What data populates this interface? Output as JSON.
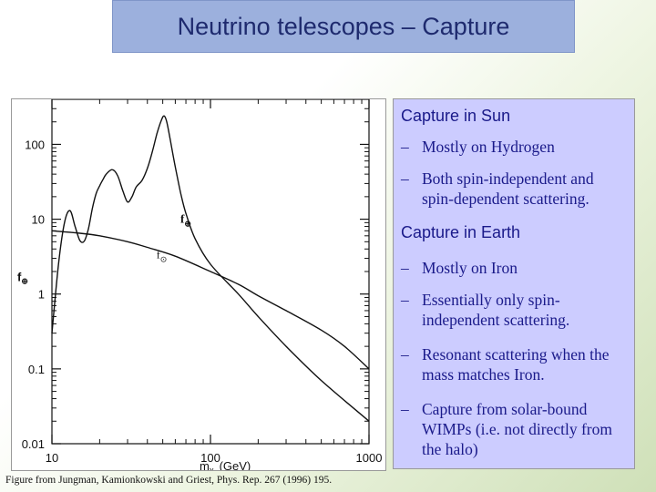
{
  "slide": {
    "title": "Neutrino telescopes – Capture",
    "caption": "Figure from Jungman, Kamionkowski and Griest, Phys. Rep. 267 (1996) 195."
  },
  "sections": [
    {
      "heading": "Capture in Sun",
      "items": [
        "Mostly on Hydrogen",
        "Both spin-independent and spin-dependent scattering."
      ]
    },
    {
      "heading": "Capture in Earth",
      "items": [
        "Mostly on Iron",
        "Essentially only spin-independent scattering.",
        "Resonant scattering when the mass matches Iron.",
        "Capture from solar-bound WIMPs (i.e. not directly from the halo)"
      ]
    }
  ],
  "dash": "–",
  "chart_data": {
    "type": "line",
    "xlabel": "m",
    "xlabel_sub": "χ",
    "xlabel_unit": "(GeV)",
    "ylabel": "f",
    "ylabel_sub": "⊕",
    "x_scale": "log",
    "y_scale": "log",
    "xlim": [
      10,
      1000
    ],
    "ylim": [
      0.01,
      400
    ],
    "x_ticks": [
      10,
      100,
      1000
    ],
    "x_tick_labels": [
      "10",
      "100",
      "1000"
    ],
    "y_ticks": [
      0.01,
      0.1,
      1,
      10,
      100
    ],
    "y_tick_labels": [
      "0.01",
      "0.1",
      "1",
      "10",
      "100"
    ],
    "series": [
      {
        "name": "f⊕",
        "label_main": "f",
        "label_sub": "⊕",
        "points": [
          [
            10,
            0.3
          ],
          [
            11,
            2.5
          ],
          [
            12,
            9
          ],
          [
            13,
            13
          ],
          [
            14,
            8
          ],
          [
            15,
            5.2
          ],
          [
            16,
            5.1
          ],
          [
            17,
            7.5
          ],
          [
            18,
            14
          ],
          [
            19,
            22
          ],
          [
            20,
            28
          ],
          [
            21,
            34
          ],
          [
            22,
            40
          ],
          [
            24,
            46
          ],
          [
            26,
            38
          ],
          [
            28,
            24
          ],
          [
            30,
            17
          ],
          [
            32,
            20
          ],
          [
            34,
            27
          ],
          [
            37,
            33
          ],
          [
            40,
            48
          ],
          [
            43,
            80
          ],
          [
            46,
            140
          ],
          [
            49,
            210
          ],
          [
            51,
            240
          ],
          [
            53,
            200
          ],
          [
            56,
            110
          ],
          [
            60,
            50
          ],
          [
            65,
            22
          ],
          [
            70,
            12
          ],
          [
            80,
            5.5
          ],
          [
            100,
            2.5
          ],
          [
            150,
            1.0
          ],
          [
            200,
            0.5
          ],
          [
            300,
            0.2
          ],
          [
            500,
            0.07
          ],
          [
            1000,
            0.02
          ]
        ]
      },
      {
        "name": "f⊙",
        "label_main": "f",
        "label_sub": "⊙",
        "points": [
          [
            10,
            7.0
          ],
          [
            15,
            6.5
          ],
          [
            20,
            6.0
          ],
          [
            30,
            5.0
          ],
          [
            40,
            4.2
          ],
          [
            60,
            3.2
          ],
          [
            100,
            2.0
          ],
          [
            150,
            1.35
          ],
          [
            200,
            0.95
          ],
          [
            300,
            0.6
          ],
          [
            500,
            0.33
          ],
          [
            700,
            0.2
          ],
          [
            1000,
            0.1
          ]
        ]
      }
    ]
  }
}
